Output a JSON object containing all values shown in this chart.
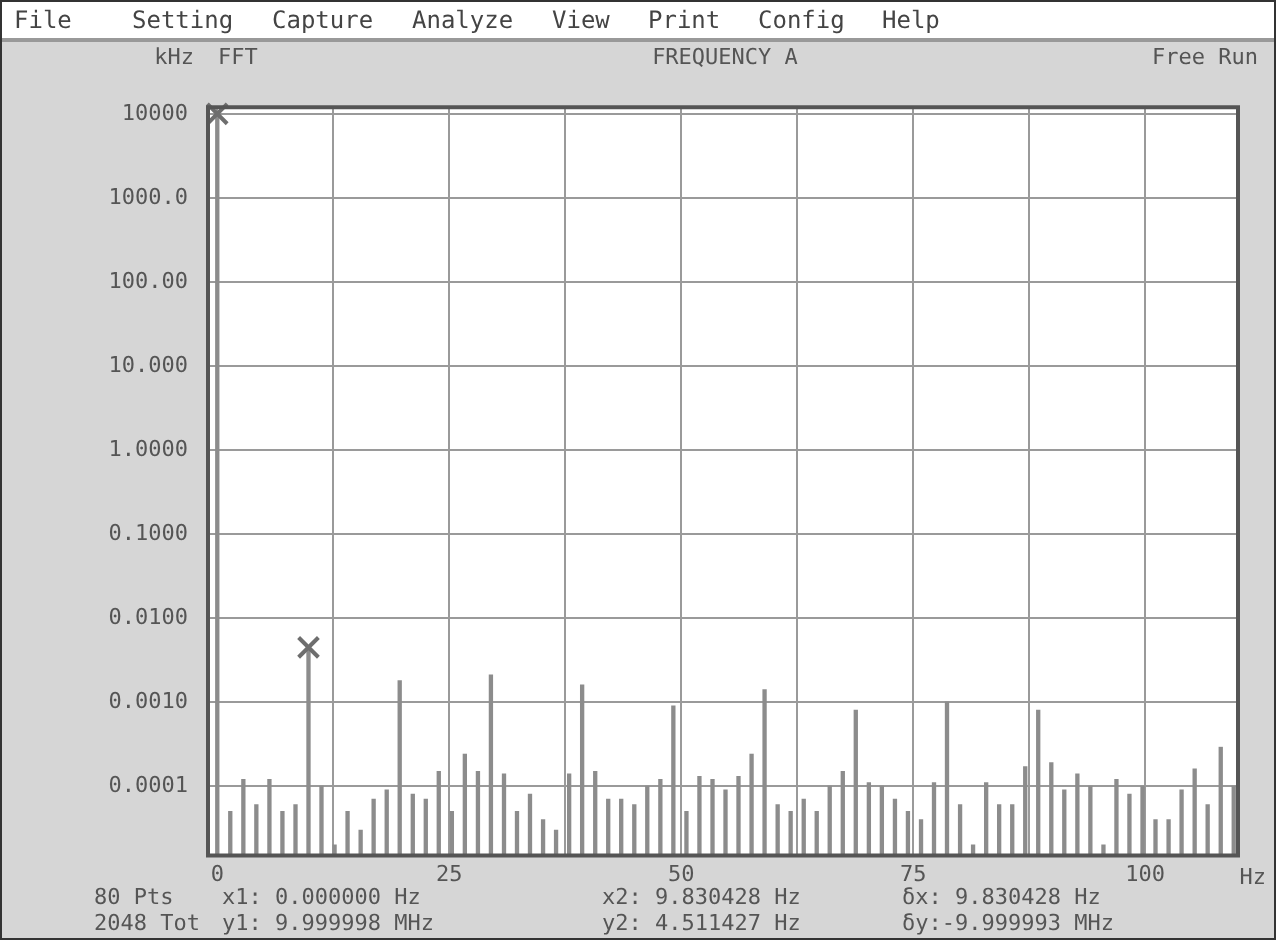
{
  "chart_data": {
    "type": "bar",
    "title": "FREQUENCY A",
    "xlabel": "Hz",
    "ylabel": "kHz",
    "annotations": [
      "File",
      "Setting",
      "Capture",
      "Analyze",
      "View",
      "Print",
      "Config",
      "Help",
      "FFT",
      "Free Run",
      "80 Pts",
      "x1: 0.000000 Hz",
      "x2: 9.830428 Hz",
      "δx: 9.830428 Hz",
      "2048 Tot",
      "y1: 9.999998 MHz",
      "y2: 4.511427 Hz",
      "δy:-9.999993 MHz"
    ],
    "x": [
      0,
      1.4,
      2.81,
      4.21,
      5.62,
      7.02,
      8.43,
      9.83,
      11.23,
      12.64,
      14.04,
      15.45,
      16.85,
      18.26,
      19.66,
      21.07,
      22.47,
      23.87,
      25.28,
      26.68,
      28.09,
      29.49,
      30.9,
      32.3,
      33.7,
      35.11,
      36.51,
      37.92,
      39.32,
      40.73,
      42.13,
      43.53,
      44.94,
      46.34,
      47.75,
      49.15,
      50.56,
      51.96,
      53.37,
      54.77,
      56.17,
      57.58,
      58.98,
      60.39,
      61.79,
      63.2,
      64.6,
      66.0,
      67.41,
      68.81,
      70.22,
      71.62,
      73.03,
      74.43,
      75.84,
      77.24,
      78.64,
      80.05,
      81.45,
      82.86,
      84.26,
      85.67,
      87.07,
      88.47,
      89.88,
      91.28,
      92.69,
      94.09,
      95.5,
      96.9,
      98.3,
      99.71,
      101.11,
      102.52,
      103.92,
      105.33,
      106.73,
      108.14,
      109.54
    ],
    "series": [
      {
        "color": "#8c8c8c",
        "values": [
          10000,
          5e-05,
          0.00012,
          6e-05,
          0.00012,
          5e-05,
          6e-05,
          0.0045,
          0.0001,
          2e-05,
          5e-05,
          3e-05,
          7e-05,
          9e-05,
          0.0018,
          8e-05,
          7e-05,
          0.00015,
          5e-05,
          0.00024,
          0.00015,
          0.0021,
          0.00014,
          5e-05,
          8e-05,
          4e-05,
          3e-05,
          0.00014,
          0.0016,
          0.00015,
          7e-05,
          7e-05,
          6e-05,
          0.0001,
          0.00012,
          0.0009,
          5e-05,
          0.00013,
          0.00012,
          9e-05,
          0.00013,
          0.00024,
          0.0014,
          6e-05,
          5e-05,
          7e-05,
          5e-05,
          0.0001,
          0.00015,
          0.0008,
          0.00011,
          0.0001,
          7e-05,
          5e-05,
          4e-05,
          0.00011,
          0.001,
          6e-05,
          2e-05,
          0.00011,
          6e-05,
          6e-05,
          0.00017,
          0.0008,
          0.00019,
          9e-05,
          0.00014,
          0.0001,
          2e-05,
          0.00012,
          8e-05,
          0.0001,
          4e-05,
          4e-05,
          9e-05,
          0.00016,
          6e-05,
          0.00029,
          0.0001
        ]
      },
      {
        "type": "scatter",
        "color": "#6e6e6e",
        "marker": "cross",
        "x": [
          0,
          9.83
        ],
        "values": [
          10000,
          0.0045
        ]
      }
    ],
    "log": "y",
    "xlim": [
      -1,
      110
    ],
    "xticks": [
      0,
      {
        "value": 12.5,
        "label": null
      },
      25,
      {
        "value": 37.5,
        "label": null
      },
      50,
      {
        "value": 62.5,
        "label": null
      },
      75,
      {
        "value": 87.5,
        "label": null
      },
      100
    ],
    "ylim": [
      1.5e-05,
      12000
    ],
    "yticks": [
      10000,
      {
        "value": 1000,
        "label": "1000.0"
      },
      {
        "value": 100,
        "label": "100.00"
      },
      {
        "value": 10,
        "label": "10.000"
      },
      {
        "value": 1,
        "label": "1.0000"
      },
      {
        "value": 0.1,
        "label": "0.1000"
      },
      {
        "value": 0.01,
        "label": "0.0100"
      },
      {
        "value": 0.001,
        "label": "0.0010"
      },
      0.0001
    ],
    "grid": true,
    "legend": false
  }
}
